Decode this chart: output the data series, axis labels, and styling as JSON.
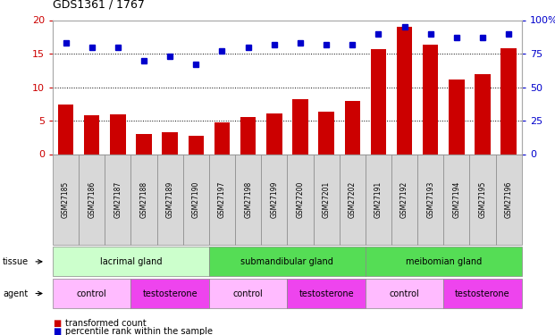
{
  "title": "GDS1361 / 1767",
  "samples": [
    "GSM27185",
    "GSM27186",
    "GSM27187",
    "GSM27188",
    "GSM27189",
    "GSM27190",
    "GSM27197",
    "GSM27198",
    "GSM27199",
    "GSM27200",
    "GSM27201",
    "GSM27202",
    "GSM27191",
    "GSM27192",
    "GSM27193",
    "GSM27194",
    "GSM27195",
    "GSM27196"
  ],
  "bar_values": [
    7.4,
    5.8,
    5.9,
    3.0,
    3.3,
    2.8,
    4.7,
    5.5,
    6.1,
    8.2,
    6.3,
    8.0,
    15.7,
    19.0,
    16.3,
    11.2,
    12.0,
    15.8
  ],
  "dot_values": [
    83,
    80,
    80,
    70,
    73,
    67,
    77,
    80,
    82,
    83,
    82,
    82,
    90,
    95,
    90,
    87,
    87,
    90
  ],
  "bar_color": "#cc0000",
  "dot_color": "#0000cc",
  "ylim_left": [
    0,
    20
  ],
  "ylim_right": [
    0,
    100
  ],
  "yticks_left": [
    0,
    5,
    10,
    15,
    20
  ],
  "yticks_right": [
    0,
    25,
    50,
    75,
    100
  ],
  "ytick_labels_right": [
    "0",
    "25",
    "50",
    "75",
    "100%"
  ],
  "grid_values": [
    5,
    10,
    15
  ],
  "tissue_spans": [
    {
      "label": "lacrimal gland",
      "start": 0,
      "end": 6,
      "color": "#ccffcc"
    },
    {
      "label": "submandibular gland",
      "start": 6,
      "end": 12,
      "color": "#55dd55"
    },
    {
      "label": "meibomian gland",
      "start": 12,
      "end": 18,
      "color": "#55dd55"
    }
  ],
  "agent_spans": [
    {
      "label": "control",
      "start": 0,
      "end": 3,
      "color": "#ffbbff"
    },
    {
      "label": "testosterone",
      "start": 3,
      "end": 6,
      "color": "#ee44ee"
    },
    {
      "label": "control",
      "start": 6,
      "end": 9,
      "color": "#ffbbff"
    },
    {
      "label": "testosterone",
      "start": 9,
      "end": 12,
      "color": "#ee44ee"
    },
    {
      "label": "control",
      "start": 12,
      "end": 15,
      "color": "#ffbbff"
    },
    {
      "label": "testosterone",
      "start": 15,
      "end": 18,
      "color": "#ee44ee"
    }
  ],
  "legend_items": [
    {
      "label": "transformed count",
      "color": "#cc0000"
    },
    {
      "label": "percentile rank within the sample",
      "color": "#0000cc"
    }
  ],
  "xlim": [
    -0.5,
    17.5
  ],
  "bg_color": "#ffffff",
  "spine_color": "#aaaaaa",
  "sample_bg_color": "#d8d8d8",
  "sample_border_color": "#888888"
}
